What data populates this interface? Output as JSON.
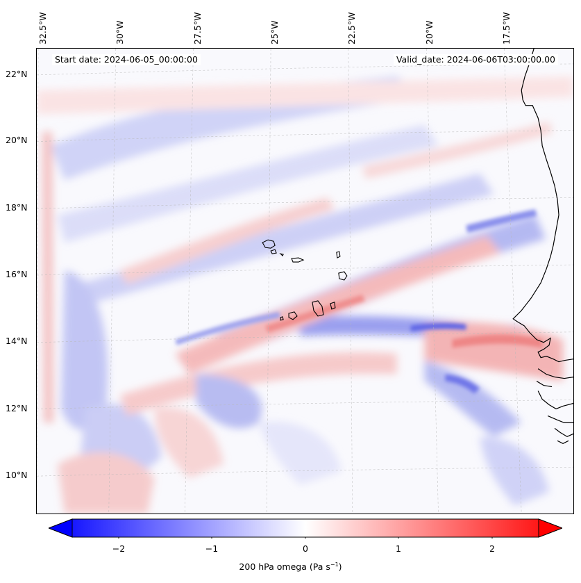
{
  "header": {
    "start_label": "Start date: 2024-06-05_00:00:00",
    "valid_label": "Valid_date: 2024-06-06T03:00:00.00"
  },
  "longitude_labels": [
    "32.5°W",
    "30°W",
    "27.5°W",
    "25°W",
    "22.5°W",
    "20°W",
    "17.5°W"
  ],
  "latitude_labels": [
    "22°N",
    "20°N",
    "18°N",
    "16°N",
    "14°N",
    "12°N",
    "10°N"
  ],
  "colorbar": {
    "ticks": [
      "−2",
      "−1",
      "0",
      "1",
      "2"
    ],
    "title_main": "200 hPa omega (Pa s",
    "title_exp": "−1",
    "title_end": ")",
    "range": [
      -2.75,
      2.75
    ],
    "colormap": "bwr",
    "low_color": "#0000ff",
    "mid_color": "#ffffff",
    "high_color": "#ff0000"
  },
  "map": {
    "field": "200 hPa omega",
    "coastline_color": "#000000",
    "gridlines": true
  }
}
